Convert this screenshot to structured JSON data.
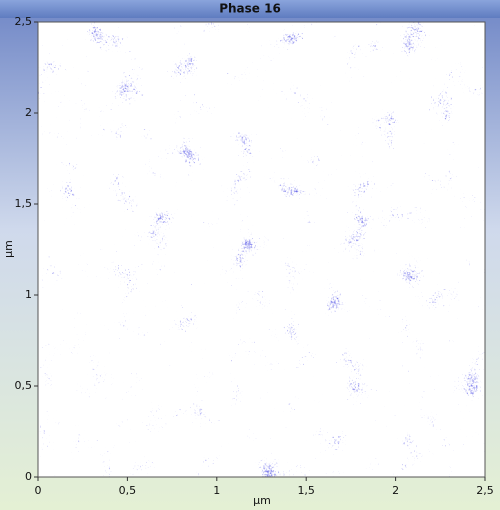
{
  "chart_data": {
    "type": "image",
    "title": "Phase 16",
    "x_label": "µm",
    "y_label": "µm",
    "xlim": [
      0,
      2.5
    ],
    "ylim": [
      0,
      2.5
    ],
    "xticks": [
      0,
      {
        "value": 0.5,
        "label": "0,5"
      },
      1,
      {
        "value": 1.5,
        "label": "1,5"
      },
      2,
      {
        "value": 2.5,
        "label": "2,5"
      }
    ],
    "yticks": [
      0,
      {
        "value": 0.5,
        "label": "0,5"
      },
      1,
      {
        "value": 1.5,
        "label": "1,5"
      },
      2,
      {
        "value": 2.5,
        "label": "2,5"
      }
    ],
    "color": "#2a2ad2"
  }
}
